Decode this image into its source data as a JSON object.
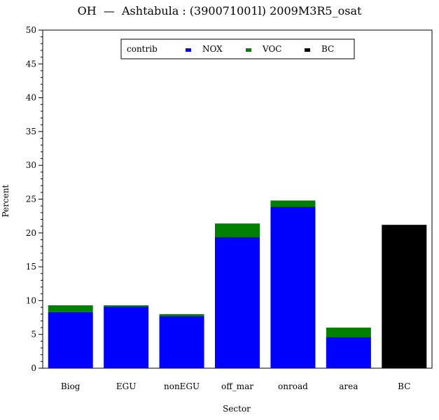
{
  "chart_data": {
    "type": "bar",
    "stacked": true,
    "title": "OH  —  Ashtabula : (390071001l) 2009M3R5_osat",
    "xlabel": "Sector",
    "ylabel": "Percent",
    "ylim": [
      0,
      50
    ],
    "yticks": [
      0,
      5,
      10,
      15,
      20,
      25,
      30,
      35,
      40,
      45,
      50
    ],
    "categories": [
      "Biog",
      "EGU",
      "nonEGU",
      "off_mar",
      "onroad",
      "area",
      "BC"
    ],
    "legend": {
      "title": "contrib",
      "placement": "top-center"
    },
    "grid": false,
    "series": [
      {
        "name": "NOX",
        "color": "#0000ff",
        "values": [
          8.3,
          9.1,
          7.7,
          19.4,
          23.9,
          4.6,
          0
        ]
      },
      {
        "name": "VOC",
        "color": "#008000",
        "values": [
          1.0,
          0.2,
          0.3,
          2.0,
          0.9,
          1.4,
          0
        ]
      },
      {
        "name": "BC",
        "color": "#000000",
        "values": [
          0,
          0,
          0,
          0,
          0,
          0,
          21.2
        ]
      }
    ]
  }
}
